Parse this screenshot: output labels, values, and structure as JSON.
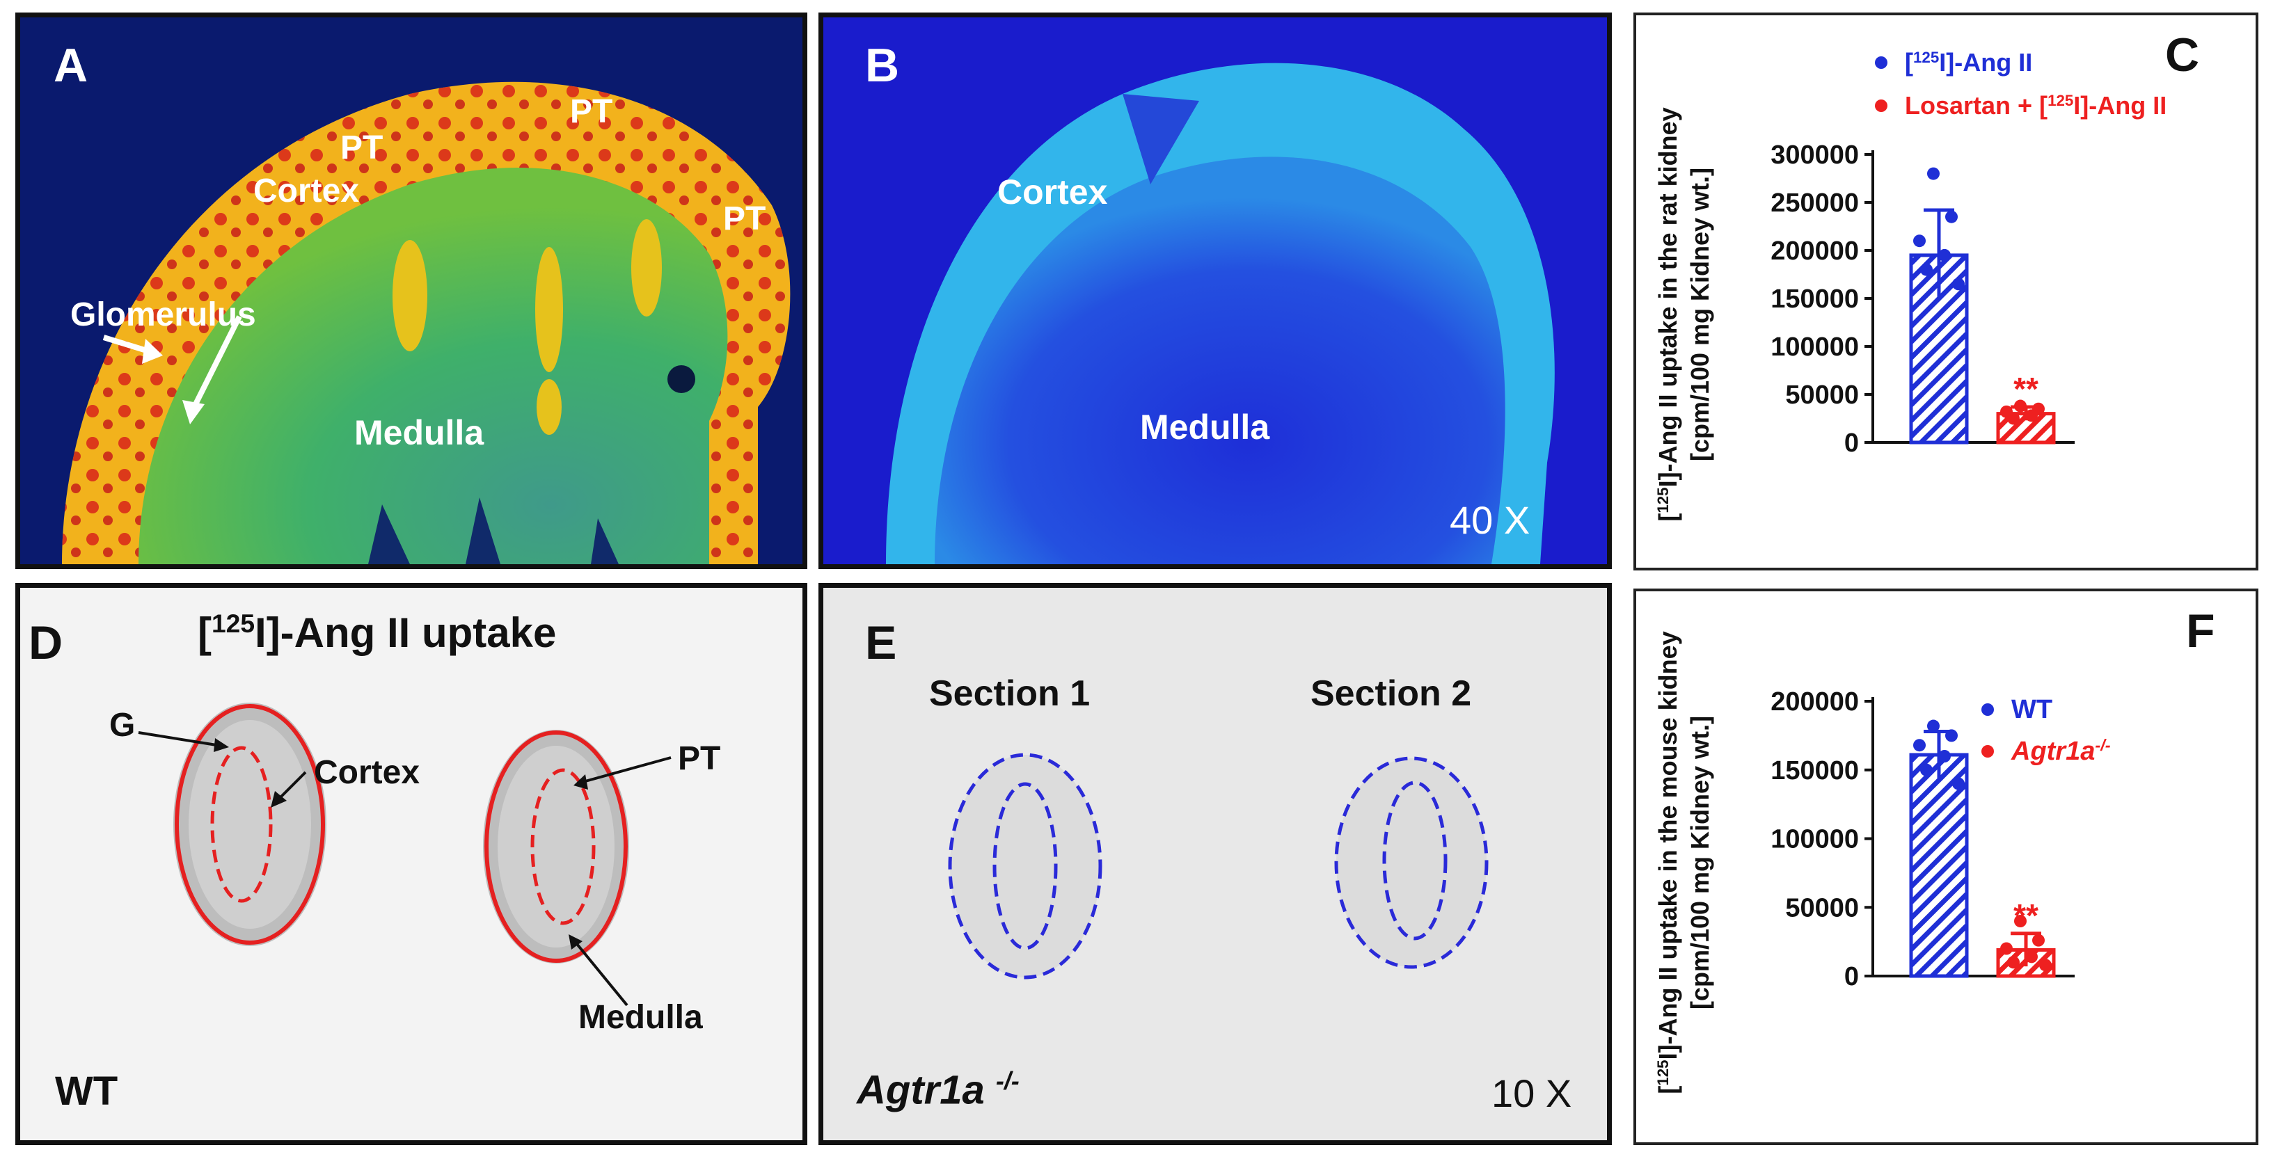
{
  "panels": {
    "A": {
      "letter": "A",
      "labels": {
        "pt1": "PT",
        "pt2": "PT",
        "pt3": "PT",
        "cortex": "Cortex",
        "glomerulus": "Glomerulus",
        "medulla": "Medulla"
      }
    },
    "B": {
      "letter": "B",
      "labels": {
        "cortex": "Cortex",
        "medulla": "Medulla",
        "magnification": "40 X"
      }
    },
    "D": {
      "letter": "D",
      "title_prefix": "[",
      "title_sup": "125",
      "title_suffix": "I]-Ang II uptake",
      "labels": {
        "g": "G",
        "cortex": "Cortex",
        "pt": "PT",
        "medulla": "Medulla",
        "genotype": "WT"
      }
    },
    "E": {
      "letter": "E",
      "labels": {
        "section1": "Section 1",
        "section2": "Section 2",
        "genotype": "Agtr1a",
        "genotype_sup": "-/-",
        "magnification": "10 X"
      }
    }
  },
  "colors": {
    "blue_series": "#1f2fd6",
    "red_series": "#ee2020"
  },
  "chart_data": [
    {
      "panel": "C",
      "type": "bar",
      "letter": "C",
      "ylabel_line1_prefix": "[",
      "ylabel_line1_sup": "125",
      "ylabel_line1_suffix": "I]-Ang II uptake in the rat kidney",
      "ylabel_line2": "[cpm/100 mg Kidney wt.]",
      "ylim": [
        0,
        300000
      ],
      "yticks": [
        0,
        50000,
        100000,
        150000,
        200000,
        250000,
        300000
      ],
      "ytick_labels": [
        "0",
        "50000",
        "100000",
        "150000",
        "200000",
        "250000",
        "300000"
      ],
      "legend": [
        {
          "prefix": "[",
          "sup": "125",
          "suffix": "I]-Ang II",
          "color": "#1f2fd6"
        },
        {
          "prefix": "Losartan + [",
          "sup": "125",
          "suffix": "I]-Ang II",
          "color": "#ee2020"
        }
      ],
      "series": [
        {
          "values": [
            195000
          ],
          "error": 47000,
          "color": "#1f2fd6",
          "points": [
            280000,
            235000,
            210000,
            195000,
            180000,
            165000
          ]
        },
        {
          "values": [
            30000
          ],
          "error": 7000,
          "color": "#ee2020",
          "annotation": "**",
          "points": [
            38000,
            35000,
            32000,
            28000,
            25000
          ]
        }
      ]
    },
    {
      "panel": "F",
      "type": "bar",
      "letter": "F",
      "ylabel_line1_prefix": "[",
      "ylabel_line1_sup": "125",
      "ylabel_line1_suffix": "I]-Ang II uptake in the mouse kidney",
      "ylabel_line2": "[cpm/100 mg Kidney wt.]",
      "ylim": [
        0,
        200000
      ],
      "yticks": [
        0,
        50000,
        100000,
        150000,
        200000
      ],
      "ytick_labels": [
        "0",
        "50000",
        "100000",
        "150000",
        "200000"
      ],
      "legend": [
        {
          "text": "WT",
          "color": "#1f2fd6",
          "italic": false
        },
        {
          "text": "Agtr1a",
          "sup": "-/-",
          "color": "#ee2020",
          "italic": true
        }
      ],
      "series": [
        {
          "values": [
            161000
          ],
          "error": 17000,
          "color": "#1f2fd6",
          "points": [
            182000,
            175000,
            168000,
            160000,
            150000,
            140000
          ]
        },
        {
          "values": [
            19000
          ],
          "error": 12000,
          "color": "#ee2020",
          "annotation": "**",
          "points": [
            40000,
            26000,
            20000,
            14000,
            10000,
            8000
          ]
        }
      ]
    }
  ]
}
